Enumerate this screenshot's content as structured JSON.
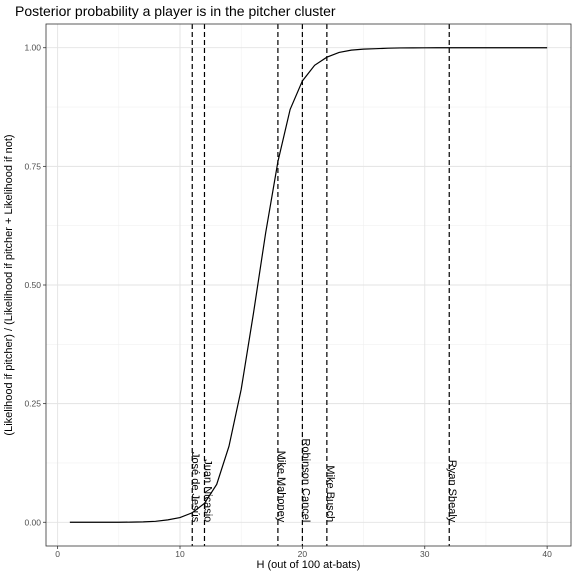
{
  "chart_data": {
    "type": "line",
    "title": "Posterior probability a player is in the pitcher cluster",
    "xlabel": "H (out of 100 at-bats)",
    "ylabel": "(Likelihood if pitcher) / (Likelihood if pitcher + Likelihood if not)",
    "xlim": [
      -0.95,
      41.95
    ],
    "ylim": [
      -0.05,
      1.05
    ],
    "x_ticks": [
      0,
      10,
      20,
      30,
      40
    ],
    "x_tick_labels": [
      "0",
      "10",
      "20",
      "30",
      "40"
    ],
    "y_ticks": [
      0.0,
      0.25,
      0.5,
      0.75,
      1.0
    ],
    "y_tick_labels": [
      "0.00",
      "0.25",
      "0.50",
      "0.75",
      "1.00"
    ],
    "grid": true,
    "series": [
      {
        "x": [
          1,
          2,
          3,
          4,
          5,
          6,
          7,
          8,
          9,
          10,
          11,
          12,
          13,
          14,
          15,
          16,
          17,
          18,
          19,
          20,
          21,
          22,
          23,
          24,
          25,
          26,
          27,
          28,
          29,
          30,
          31,
          32,
          33,
          34,
          35,
          36,
          37,
          38,
          39,
          40
        ],
        "y": [
          0.0,
          0.0,
          0.0,
          0.0,
          0.0001,
          0.0003,
          0.0008,
          0.002,
          0.005,
          0.01,
          0.02,
          0.04,
          0.08,
          0.16,
          0.28,
          0.44,
          0.61,
          0.76,
          0.87,
          0.93,
          0.963,
          0.98,
          0.99,
          0.995,
          0.997,
          0.998,
          0.999,
          0.9995,
          0.9997,
          0.9998,
          0.9999,
          1.0,
          1.0,
          1.0,
          1.0,
          1.0,
          1.0,
          1.0,
          1.0,
          1.0
        ]
      }
    ],
    "vlines": [
      {
        "x": 11,
        "label": "José de Jesús"
      },
      {
        "x": 12,
        "label": "Juan Nicasio"
      },
      {
        "x": 18,
        "label": "Mike Mahoney"
      },
      {
        "x": 20,
        "label": "Robinson Cancel"
      },
      {
        "x": 22,
        "label": "Mike Busch"
      },
      {
        "x": 32,
        "label": "Ryan Shealy"
      }
    ]
  }
}
